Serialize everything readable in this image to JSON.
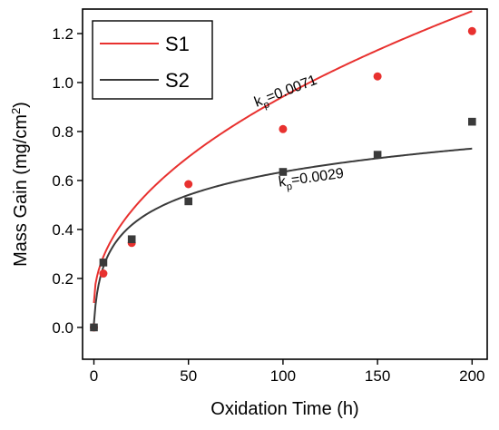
{
  "chart_data": {
    "type": "scatter",
    "xlabel": "Oxidation Time (h)",
    "ylabel_parts": {
      "main": "Mass Gain (mg/cm",
      "sup": "2",
      "close": ")"
    },
    "xlim": [
      -6,
      208
    ],
    "ylim": [
      -0.13,
      1.3
    ],
    "xticks": [
      0,
      50,
      100,
      150,
      200
    ],
    "yticks": [
      0.0,
      0.2,
      0.4,
      0.6,
      0.8,
      1.0,
      1.2
    ],
    "ytick_labels": [
      "0.0",
      "0.2",
      "0.4",
      "0.6",
      "0.8",
      "1.0",
      "1.2"
    ],
    "grid": false,
    "legend_position": "top-left",
    "series": [
      {
        "name": "S1",
        "color": "#e8312f",
        "marker": "circle",
        "x": [
          0,
          5,
          20,
          50,
          100,
          150,
          200
        ],
        "y": [
          0.0,
          0.22,
          0.345,
          0.585,
          0.81,
          1.025,
          1.21
        ],
        "fit": {
          "kind": "parabolic",
          "kp": 0.0071,
          "y0": 0.1
        },
        "annotation": {
          "k": "k",
          "sub": "p",
          "eq": "=0.0071",
          "x": 86,
          "y": 0.9,
          "angle": -21
        }
      },
      {
        "name": "S2",
        "color": "#3a3a3a",
        "marker": "square",
        "x": [
          0,
          5,
          20,
          50,
          100,
          150,
          200
        ],
        "y": [
          0.0,
          0.265,
          0.36,
          0.515,
          0.635,
          0.705,
          0.84
        ],
        "fit": {
          "kind": "logarithmic",
          "a": 0.1385,
          "b": 0.0,
          "t0": 1.15
        },
        "annotation": {
          "k": "k",
          "sub": "p",
          "eq": "=0.0029",
          "x": 98,
          "y": 0.575,
          "angle": -8
        }
      }
    ]
  }
}
